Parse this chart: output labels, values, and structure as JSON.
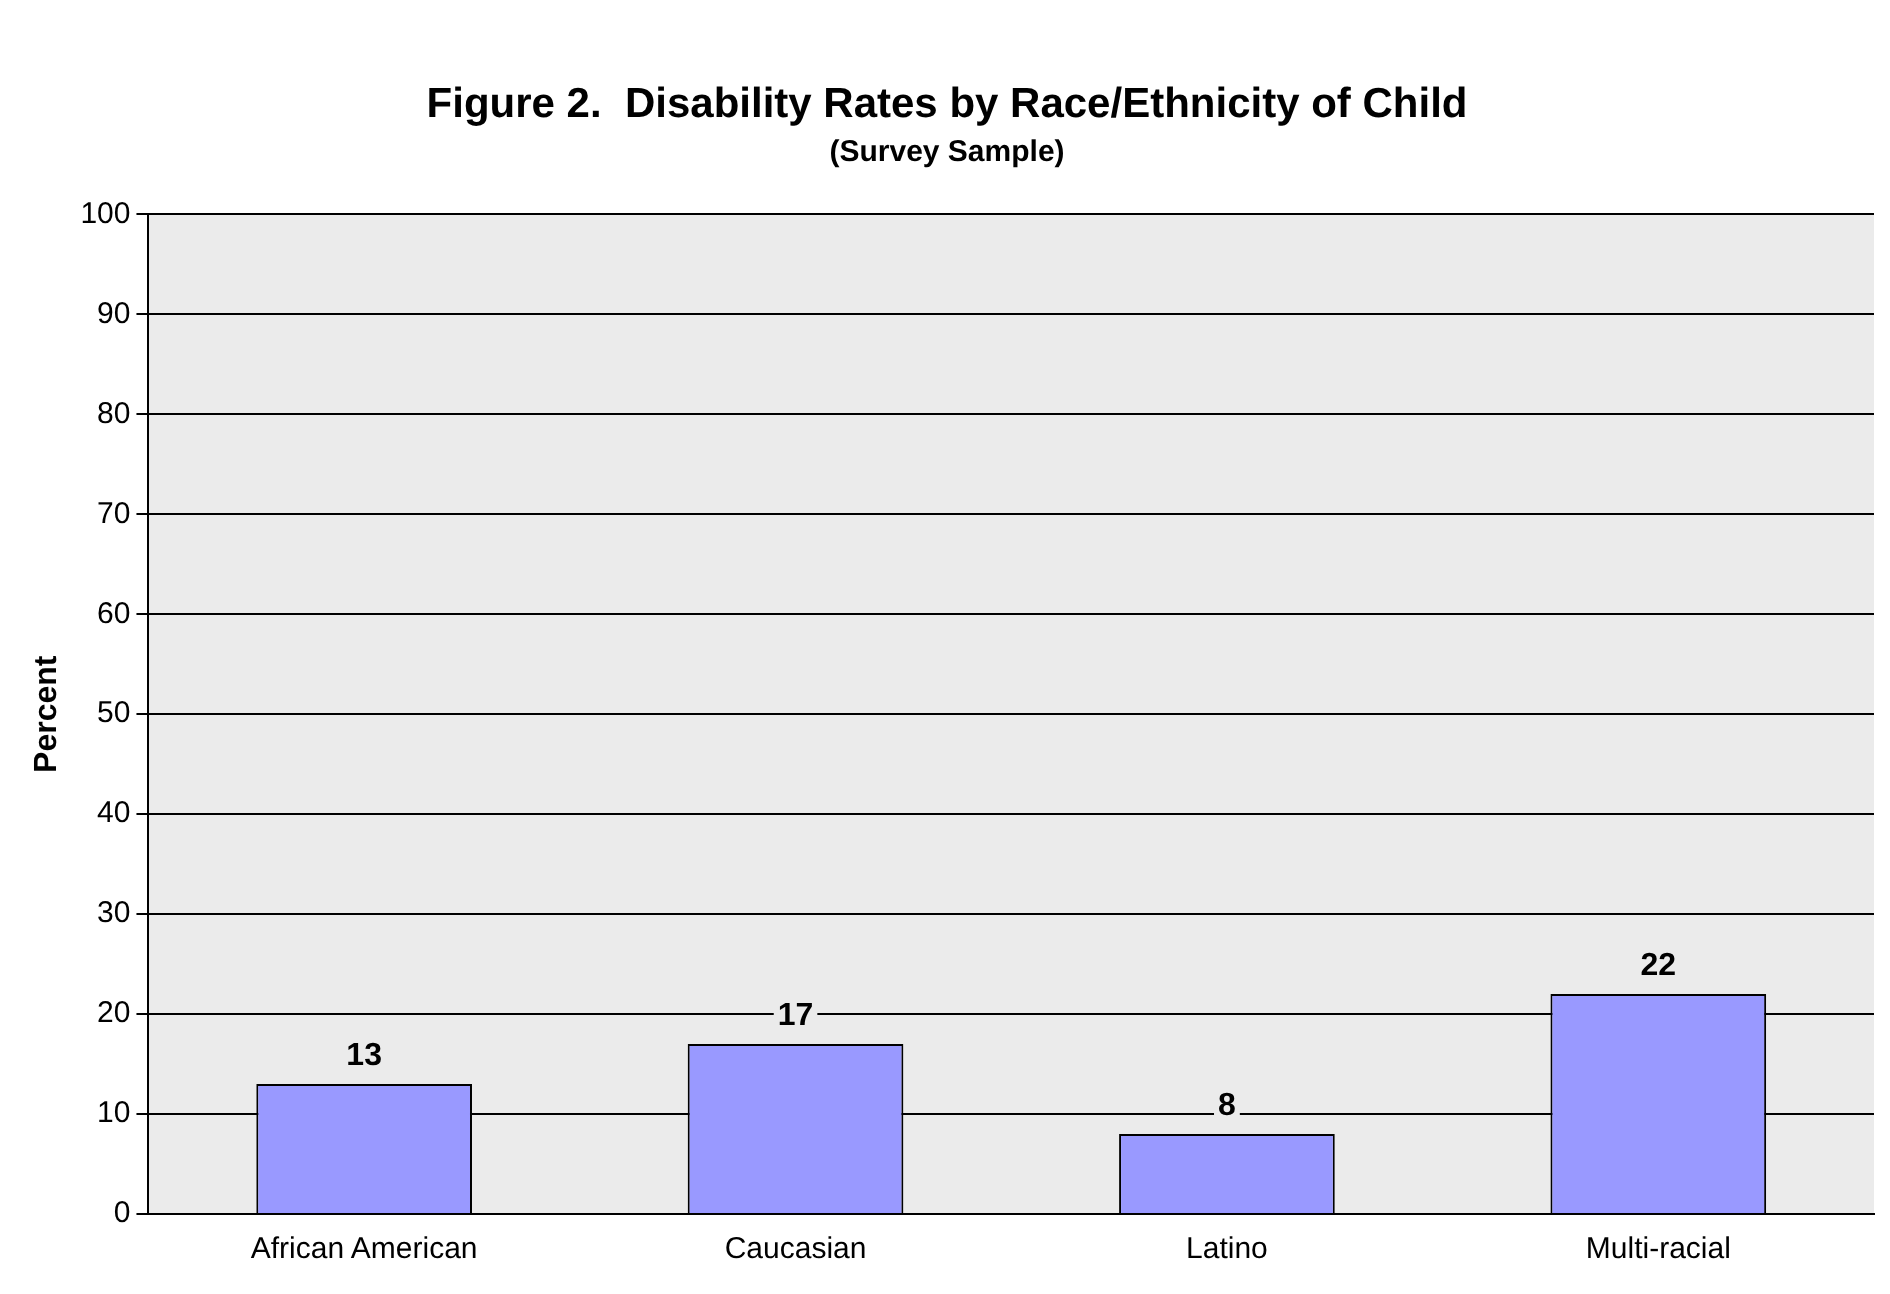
{
  "chart_data": {
    "type": "bar",
    "title": "Figure 2.  Disability Rates by Race/Ethnicity of Child",
    "subtitle": "(Survey Sample)",
    "ylabel": "Percent",
    "categories": [
      "African American",
      "Caucasian",
      "Latino",
      "Multi-racial"
    ],
    "values": [
      13,
      17,
      8,
      22
    ],
    "color": "#9999ff",
    "ylim": [
      0,
      100
    ],
    "yticks": [
      0,
      10,
      20,
      30,
      40,
      50,
      60,
      70,
      80,
      90,
      100
    ],
    "grid": "y",
    "data_labels": true,
    "legend": false
  }
}
